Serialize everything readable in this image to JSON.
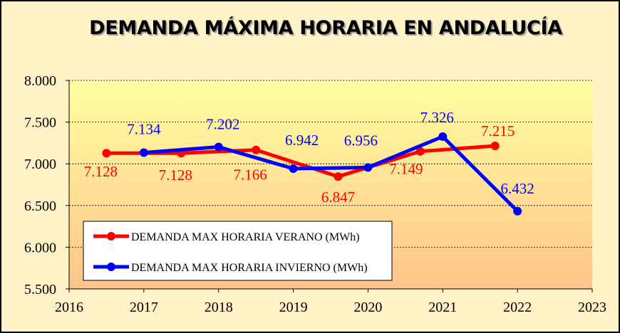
{
  "colors": {
    "series_verano": "#ff0000",
    "series_invierno": "#0000ff",
    "plot_gradient_top": "#ffffa0",
    "plot_gradient_bottom": "#ffc48a",
    "frame_background": "#fff2c6"
  },
  "chart_data": {
    "type": "scatter",
    "title": "DEMANDA MÁXIMA HORARIA EN ANDALUCÍA",
    "xlabel": "",
    "ylabel": "",
    "xlim": [
      2016,
      2023
    ],
    "ylim": [
      5500,
      8000
    ],
    "x_ticks": [
      "2016",
      "2017",
      "2018",
      "2019",
      "2020",
      "2021",
      "2022",
      "2023"
    ],
    "y_ticks": [
      "5.500",
      "6.000",
      "6.500",
      "7.000",
      "7.500",
      "8.000"
    ],
    "grid": "horizontal dashed",
    "legend_position": "bottom-left",
    "series": [
      {
        "name": "DEMANDA MAX HORARIA VERANO (MWh)",
        "color": "#ff0000",
        "x": [
          2016.5,
          2017.5,
          2018.5,
          2019.6,
          2020.7,
          2021.7
        ],
        "y": [
          7128,
          7128,
          7166,
          6847,
          7149,
          7215
        ],
        "labels": [
          "7.128",
          "7.128",
          "7.166",
          "6.847",
          "7.149",
          "7.215"
        ]
      },
      {
        "name": "DEMANDA MAX HORARIA INVIERNO (MWh)",
        "color": "#0000ff",
        "x": [
          2017,
          2018,
          2019,
          2020,
          2021,
          2022
        ],
        "y": [
          7134,
          7202,
          6942,
          6956,
          7326,
          6432
        ],
        "labels": [
          "7.134",
          "7.202",
          "6.942",
          "6.956",
          "7.326",
          "6.432"
        ]
      }
    ]
  }
}
